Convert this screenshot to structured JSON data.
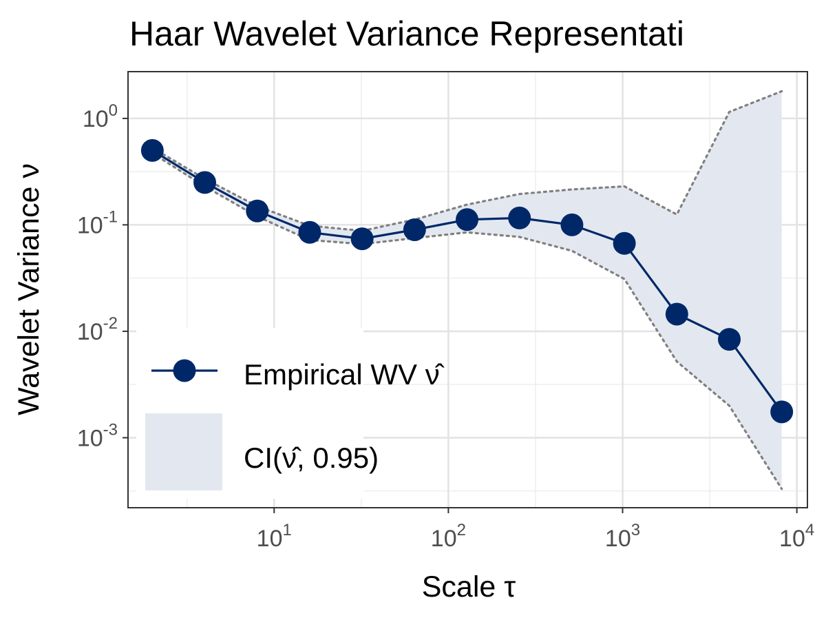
{
  "chart_data": {
    "type": "line",
    "title": "Haar Wavelet Variance Representati",
    "xlabel": "Scale τ",
    "ylabel": "Wavelet Variance ν",
    "x_scale": "log",
    "y_scale": "log",
    "xlim": [
      1.45,
      11500
    ],
    "ylim": [
      0.00022,
      2.75
    ],
    "grid": true,
    "legend_position": "bottom-left",
    "x_ticks": [
      {
        "value": 10,
        "base": "10",
        "exp": "1"
      },
      {
        "value": 100,
        "base": "10",
        "exp": "2"
      },
      {
        "value": 1000,
        "base": "10",
        "exp": "3"
      },
      {
        "value": 10000,
        "base": "10",
        "exp": "4"
      }
    ],
    "y_ticks": [
      {
        "value": 1,
        "base": "10",
        "exp": "0"
      },
      {
        "value": 0.1,
        "base": "10",
        "exp": "-1"
      },
      {
        "value": 0.01,
        "base": "10",
        "exp": "-2"
      },
      {
        "value": 0.001,
        "base": "10",
        "exp": "-3"
      }
    ],
    "x": [
      2,
      4,
      8,
      16,
      32,
      64,
      128,
      256,
      512,
      1024,
      2048,
      4096,
      8192
    ],
    "series": [
      {
        "name": "Empirical WV ν̂",
        "values": [
          0.5,
          0.25,
          0.135,
          0.085,
          0.074,
          0.09,
          0.112,
          0.116,
          0.1,
          0.067,
          0.0145,
          0.0084,
          0.00175
        ],
        "color": "#002868"
      }
    ],
    "ci": {
      "name": "CI(ν̂, 0.95)",
      "lower": [
        0.47,
        0.23,
        0.12,
        0.072,
        0.066,
        0.075,
        0.085,
        0.077,
        0.057,
        0.031,
        0.0052,
        0.002,
        0.00033
      ],
      "upper": [
        0.53,
        0.27,
        0.15,
        0.098,
        0.088,
        0.112,
        0.155,
        0.195,
        0.215,
        0.23,
        0.125,
        1.15,
        1.8
      ],
      "fill_color": "#e3e8f0",
      "line_color": "#808080"
    },
    "legend": {
      "line_label_text": "Empirical WV ",
      "line_label_hat": "ν̂",
      "ci_label_prefix": "CI(",
      "ci_label_hat": "ν̂",
      "ci_label_suffix": ", 0.95)"
    }
  }
}
